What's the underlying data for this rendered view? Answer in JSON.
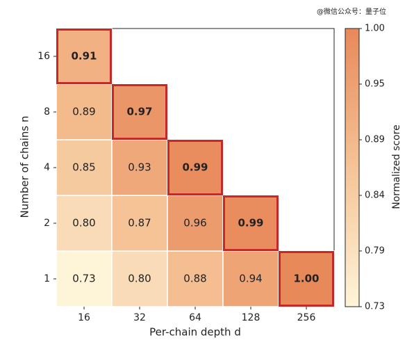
{
  "chart_data": {
    "type": "heatmap",
    "watermark": "@微信公众号：量子位",
    "x_label": "Per-chain depth d",
    "y_label": "Number of chains n",
    "x_categories": [
      "16",
      "32",
      "64",
      "128",
      "256"
    ],
    "y_categories": [
      "1",
      "2",
      "4",
      "8",
      "16"
    ],
    "values": [
      [
        0.73,
        0.8,
        0.88,
        0.94,
        1.0
      ],
      [
        0.8,
        0.87,
        0.96,
        0.99,
        null
      ],
      [
        0.85,
        0.93,
        0.99,
        null,
        null
      ],
      [
        0.89,
        0.97,
        null,
        null,
        null
      ],
      [
        0.91,
        null,
        null,
        null,
        null
      ]
    ],
    "value_labels": [
      [
        "0.73",
        "0.80",
        "0.88",
        "0.94",
        "1.00"
      ],
      [
        "0.80",
        "0.87",
        "0.96",
        "0.99",
        null
      ],
      [
        "0.85",
        "0.93",
        "0.99",
        null,
        null
      ],
      [
        "0.89",
        "0.97",
        null,
        null,
        null
      ],
      [
        "0.91",
        null,
        null,
        null,
        null
      ]
    ],
    "cmap": [
      "#fef4d8",
      "#f5c497",
      "#e8895a"
    ],
    "highlight_color": "#c62828",
    "colorbar": {
      "label": "Normalized score",
      "lim": [
        0.7333,
        1.0
      ],
      "ticks": [
        {
          "value": 0.7333,
          "label": "0.73"
        },
        {
          "value": 0.7867,
          "label": "0.79"
        },
        0.84,
        {
          "value": 0.8933,
          "label": "0.89"
        },
        {
          "value": 0.9467,
          "label": "0.95"
        },
        {
          "value": 1.0,
          "label": "1.00"
        }
      ]
    }
  }
}
